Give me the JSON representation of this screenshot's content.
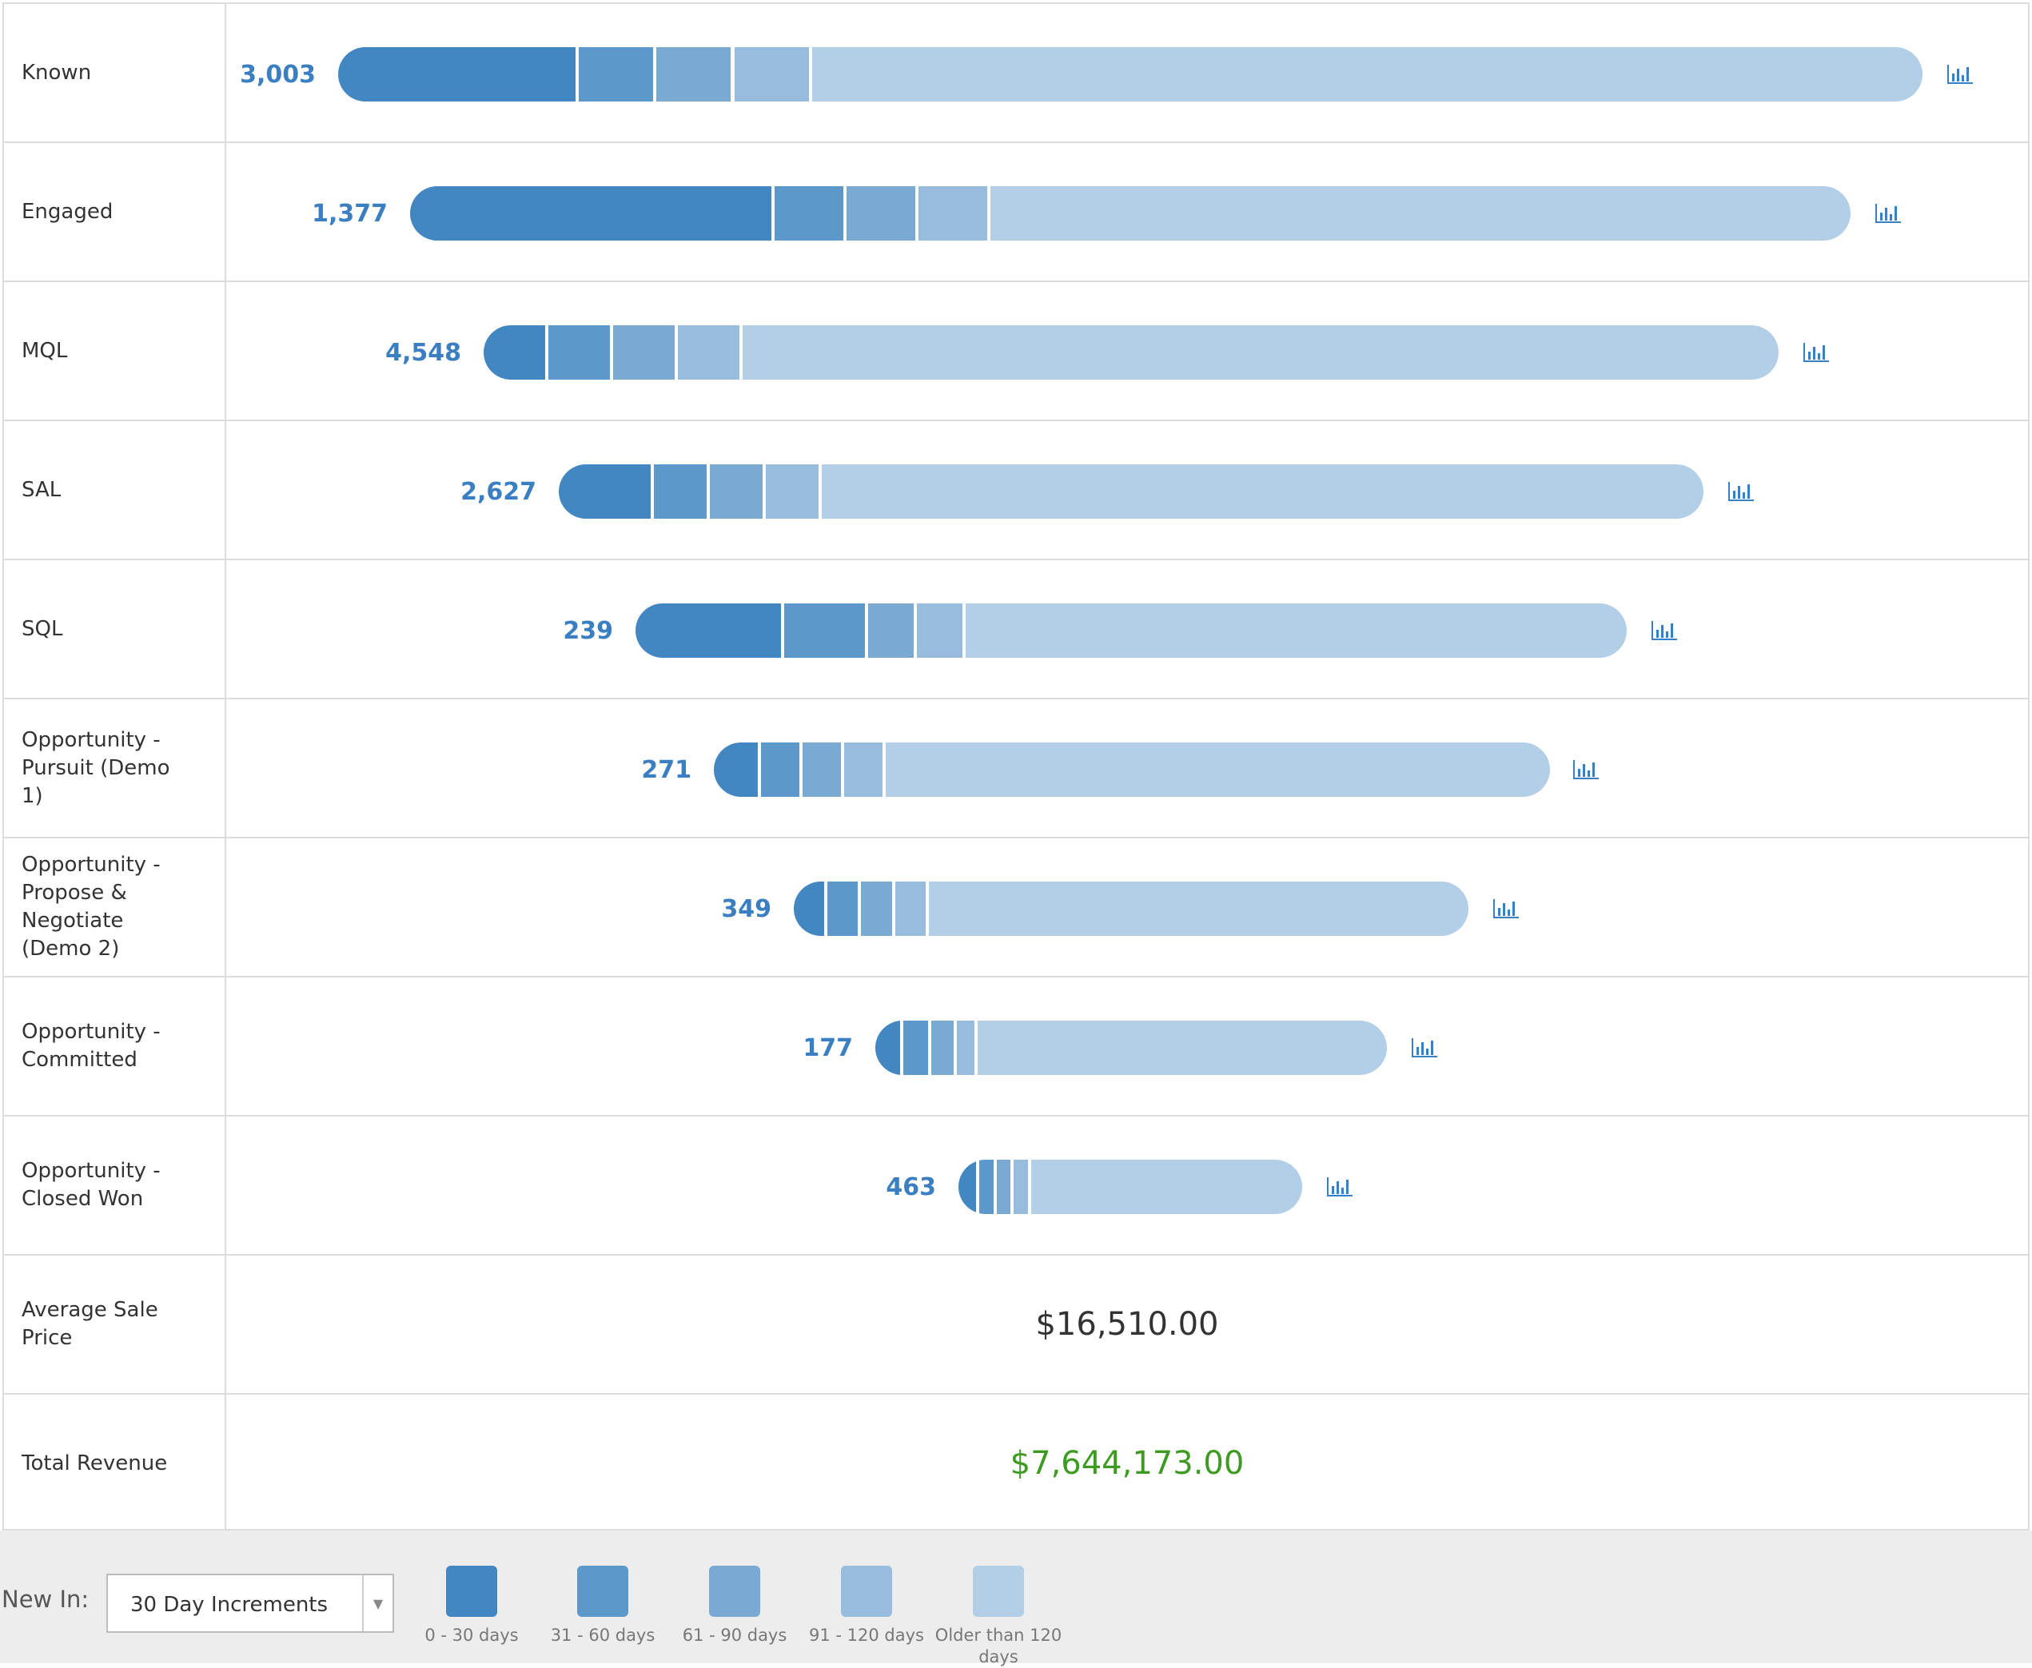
{
  "stages": [
    {
      "label": "Known",
      "count": "3,003",
      "segments": [
        0.152,
        0.049,
        0.049,
        0.049,
        0.701
      ],
      "chart_icon": "bar-chart-icon"
    },
    {
      "label": "Engaged",
      "count": "1,377",
      "segments": [
        0.253,
        0.05,
        0.05,
        0.05,
        0.597
      ],
      "chart_icon": "bar-chart-icon"
    },
    {
      "label": "MQL",
      "count": "4,548",
      "segments": [
        0.05,
        0.05,
        0.05,
        0.05,
        0.8
      ],
      "chart_icon": "bar-chart-icon"
    },
    {
      "label": "SAL",
      "count": "2,627",
      "segments": [
        0.083,
        0.049,
        0.049,
        0.049,
        0.77
      ],
      "chart_icon": "bar-chart-icon"
    },
    {
      "label": "SQL",
      "count": "239",
      "segments": [
        0.15,
        0.085,
        0.049,
        0.049,
        0.667
      ],
      "chart_icon": "bar-chart-icon"
    },
    {
      "label": "Opportunity - Pursuit (Demo 1)",
      "count": "271",
      "segments": [
        0.056,
        0.05,
        0.05,
        0.05,
        0.794
      ],
      "chart_icon": "bar-chart-icon"
    },
    {
      "label": "Opportunity - Propose & Negotiate (Demo 2)",
      "count": "349",
      "segments": [
        0.05,
        0.05,
        0.05,
        0.05,
        0.8
      ],
      "chart_icon": "bar-chart-icon"
    },
    {
      "label": "Opportunity - Committed",
      "count": "177",
      "segments": [
        0.055,
        0.055,
        0.05,
        0.04,
        0.8
      ],
      "chart_icon": "bar-chart-icon"
    },
    {
      "label": "Opportunity - Closed Won",
      "count": "463",
      "segments": [
        0.061,
        0.05,
        0.05,
        0.05,
        0.789
      ],
      "chart_icon": "bar-chart-icon"
    }
  ],
  "metrics": {
    "avg_sale_price_label": "Average Sale Price",
    "avg_sale_price_value": "$16,510.00",
    "total_revenue_label": "Total Revenue",
    "total_revenue_value": "$7,644,173.00"
  },
  "legend": {
    "new_in_label": "New In:",
    "increment_select_value": "30 Day Increments",
    "items": [
      {
        "label": "0 - 30 days",
        "color": "#4286c2"
      },
      {
        "label": "31 - 60 days",
        "color": "#5d98cb"
      },
      {
        "label": "61 - 90 days",
        "color": "#7aa9d3"
      },
      {
        "label": "91 - 120 days",
        "color": "#98bcde"
      },
      {
        "label": "Older than 120 days",
        "color": "#b3cfe7"
      }
    ]
  },
  "colors": {
    "bucket_0_30": "#4286c2",
    "bucket_31_60": "#5d98cb",
    "bucket_61_90": "#7aa9d3",
    "bucket_91_120": "#98bcde",
    "bucket_older": "#b3cfe7",
    "count_text": "#3a7fc1",
    "revenue_text": "#3d9b21"
  }
}
